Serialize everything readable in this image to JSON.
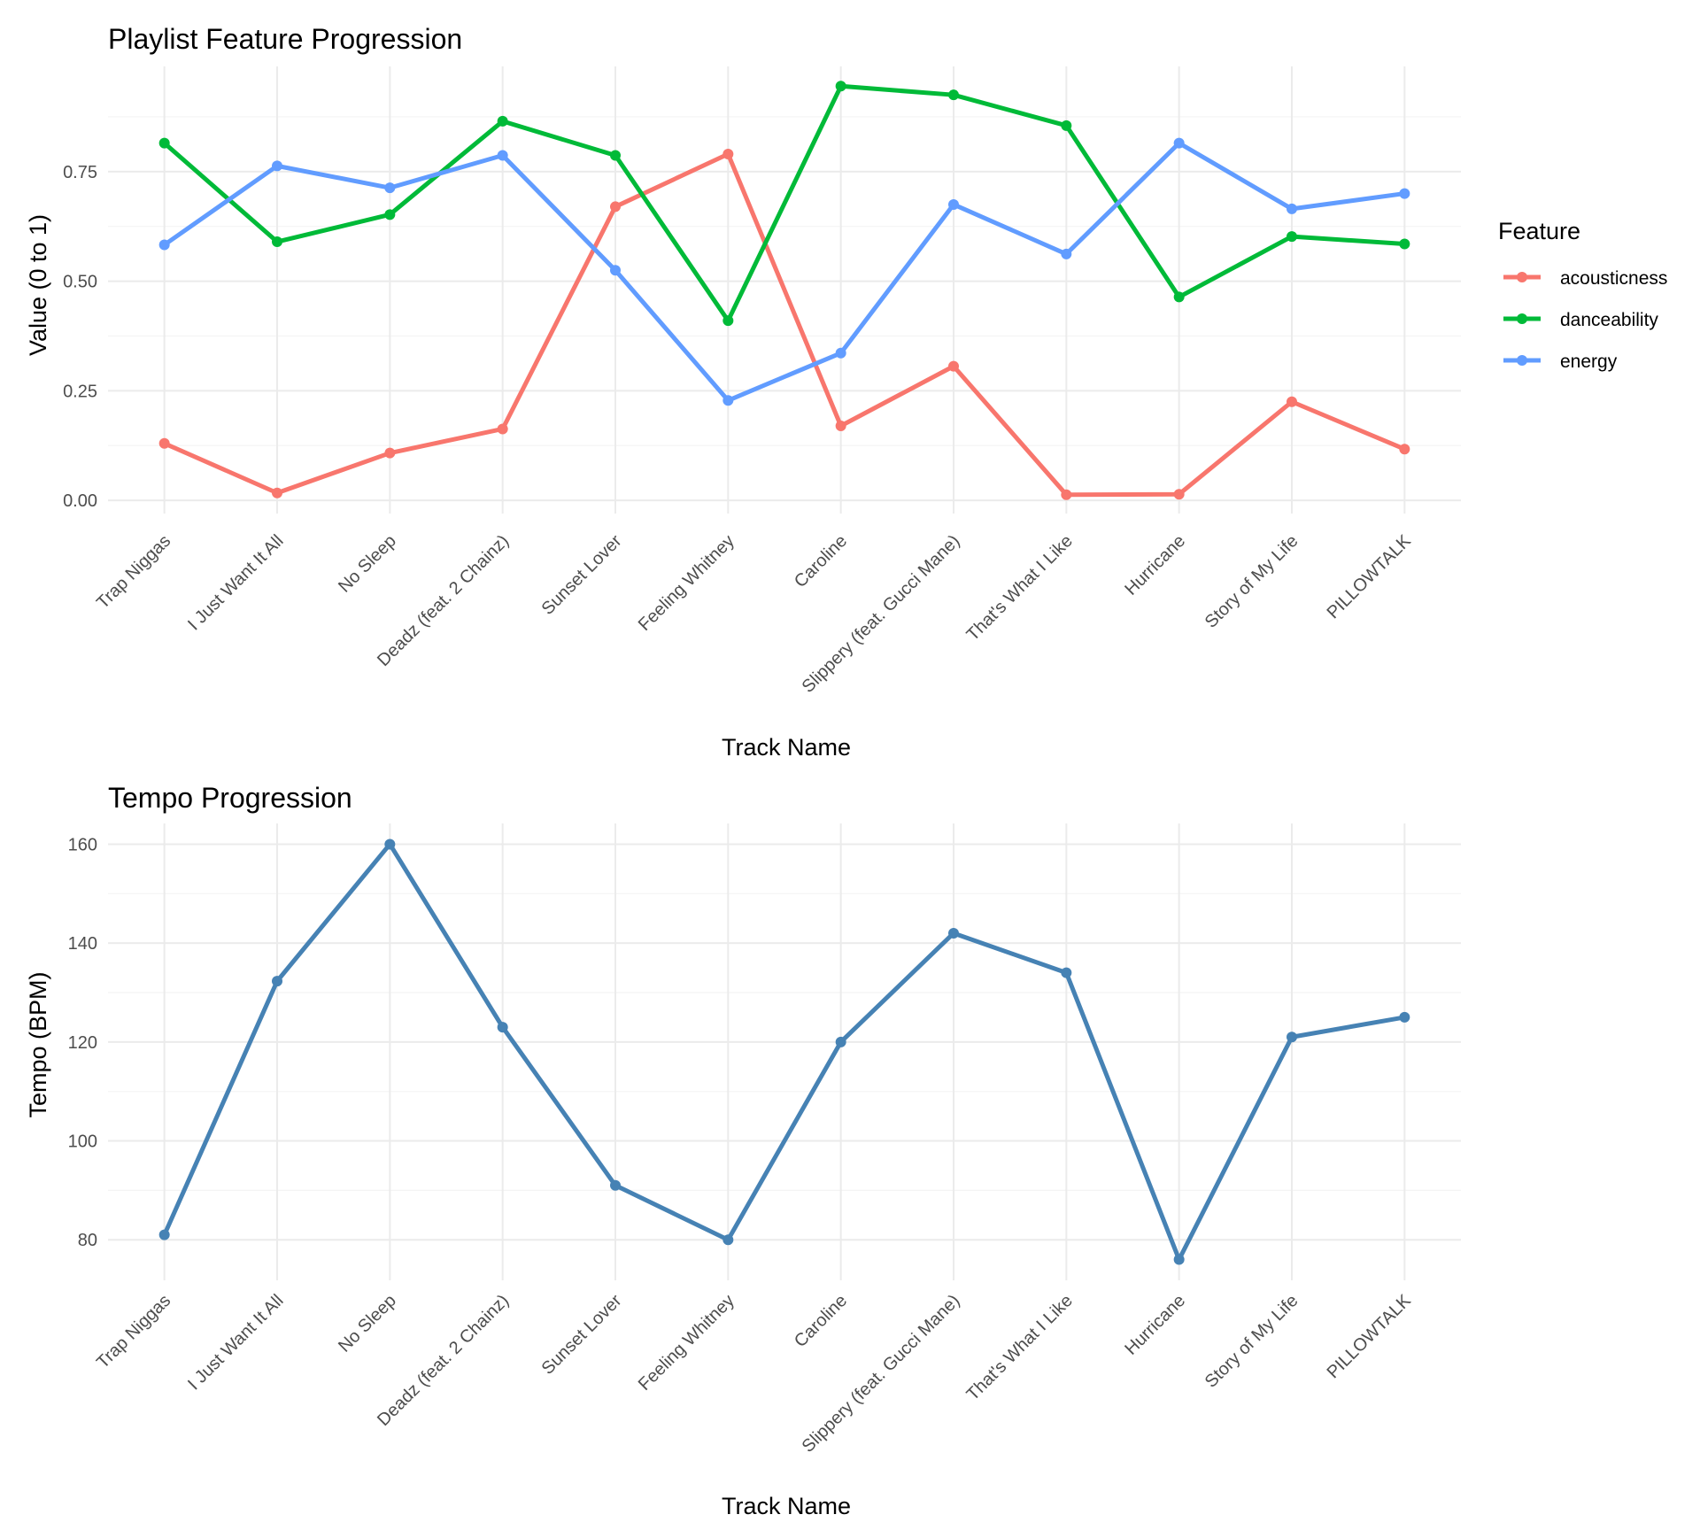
{
  "chart_data": [
    {
      "type": "line",
      "title": "Playlist Feature Progression",
      "xlabel": "Track Name",
      "ylabel": "Value (0 to 1)",
      "categories": [
        "Trap Niggas",
        "I Just Want It All",
        "No Sleep",
        "Deadz (feat. 2 Chainz)",
        "Sunset Lover",
        "Feeling Whitney",
        "Caroline",
        "Slippery (feat. Gucci Mane)",
        "That's What I Like",
        "Hurricane",
        "Story of My Life",
        "PILLOWTALK"
      ],
      "ylim": [
        -0.03,
        0.99
      ],
      "yticks": [
        0,
        0.25,
        0.5,
        0.75
      ],
      "ytick_labels": [
        "0.00",
        "0.25",
        "0.50",
        "0.75"
      ],
      "grid": true,
      "legend": {
        "title": "Feature",
        "position": "right"
      },
      "series": [
        {
          "name": "acousticness",
          "color": "#F8766D",
          "values": [
            0.13,
            0.017,
            0.108,
            0.163,
            0.67,
            0.79,
            0.17,
            0.306,
            0.013,
            0.014,
            0.225,
            0.117
          ]
        },
        {
          "name": "danceability",
          "color": "#00BA38",
          "values": [
            0.815,
            0.59,
            0.652,
            0.865,
            0.787,
            0.41,
            0.945,
            0.925,
            0.855,
            0.464,
            0.602,
            0.585
          ]
        },
        {
          "name": "energy",
          "color": "#619CFF",
          "values": [
            0.583,
            0.763,
            0.713,
            0.787,
            0.525,
            0.228,
            0.336,
            0.675,
            0.562,
            0.815,
            0.665,
            0.7
          ]
        }
      ]
    },
    {
      "type": "line",
      "title": "Tempo Progression",
      "xlabel": "Track Name",
      "ylabel": "Tempo (BPM)",
      "categories": [
        "Trap Niggas",
        "I Just Want It All",
        "No Sleep",
        "Deadz (feat. 2 Chainz)",
        "Sunset Lover",
        "Feeling Whitney",
        "Caroline",
        "Slippery (feat. Gucci Mane)",
        "That's What I Like",
        "Hurricane",
        "Story of My Life",
        "PILLOWTALK"
      ],
      "ylim": [
        71.8,
        164.2
      ],
      "yticks": [
        80,
        100,
        120,
        140,
        160
      ],
      "ytick_labels": [
        "80",
        "100",
        "120",
        "140",
        "160"
      ],
      "grid": true,
      "series": [
        {
          "color": "#4682B4",
          "values": [
            81,
            132.3,
            160,
            123,
            91,
            80,
            120,
            142,
            134,
            76,
            121,
            125
          ]
        }
      ]
    }
  ]
}
